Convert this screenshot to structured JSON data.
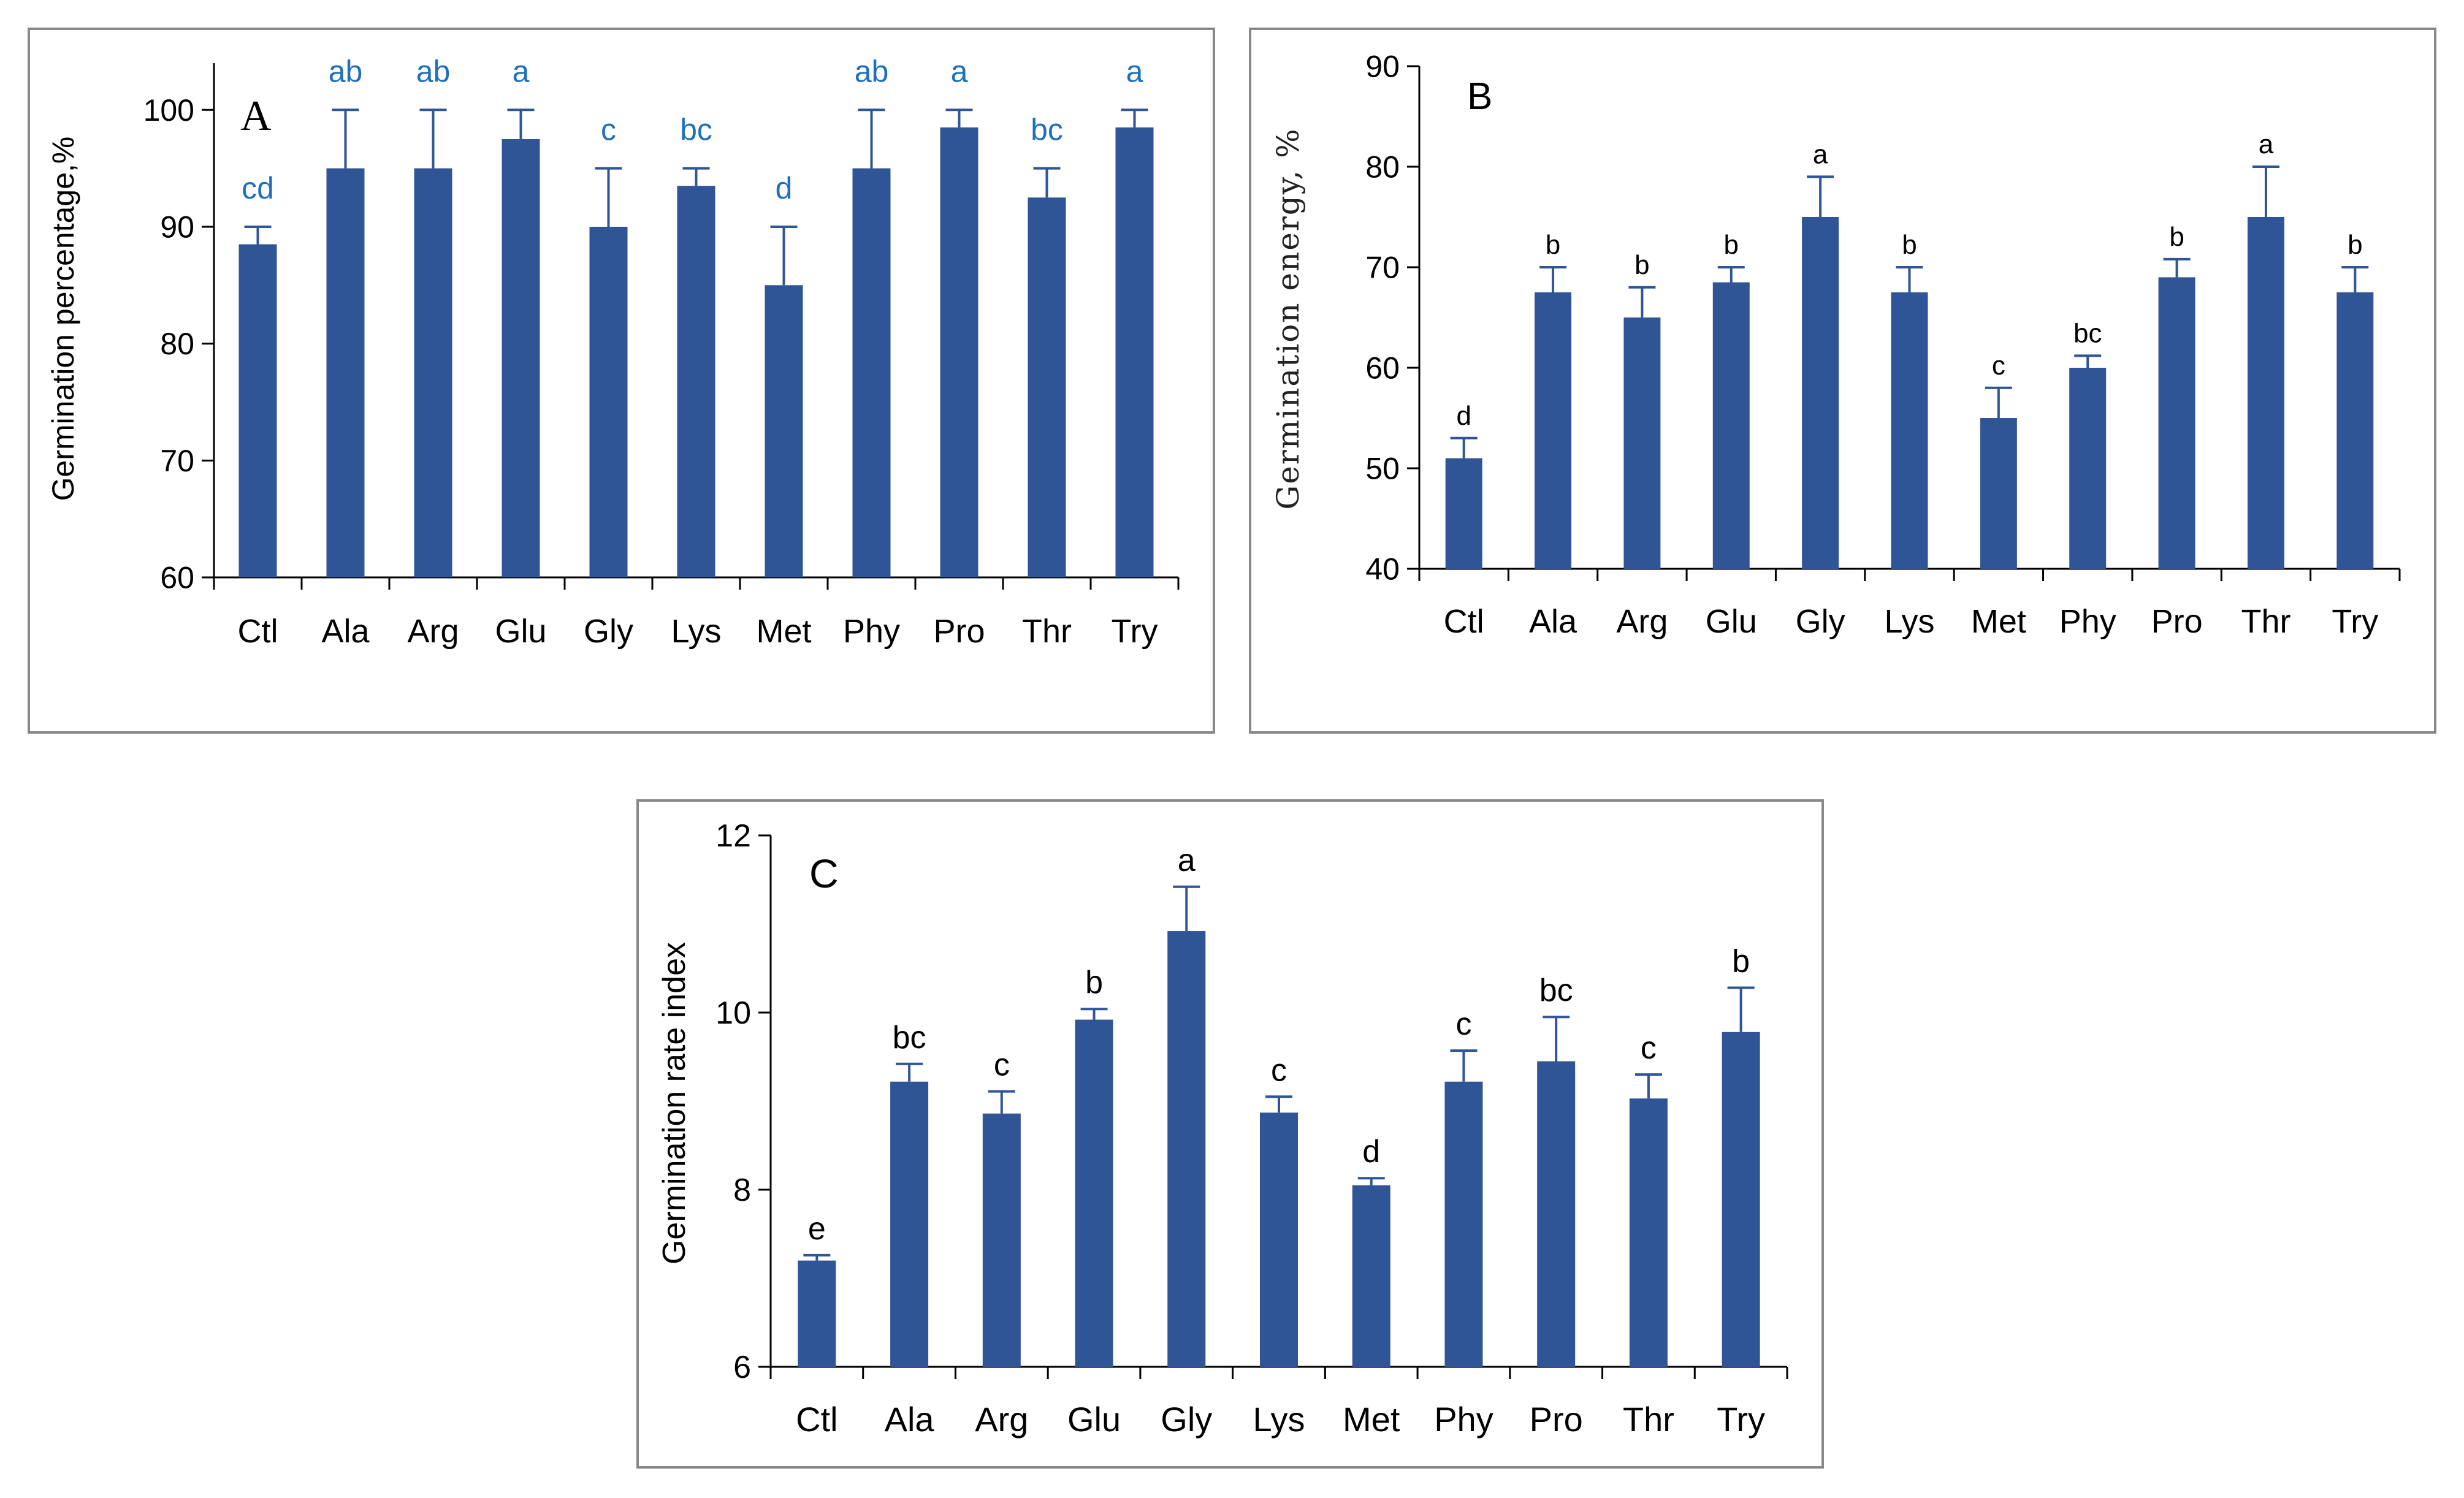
{
  "colors": {
    "bar": "#2F5597",
    "axis": "#000000",
    "frame": "#888888",
    "sig_panel_a": "#1F6FBF",
    "sig_default": "#000000"
  },
  "chart_data": [
    {
      "type": "bar",
      "panel": "A",
      "title": "",
      "xlabel": "",
      "ylabel": "Germination percentage,%",
      "ylim": [
        60,
        104
      ],
      "yticks": [
        60,
        70,
        80,
        90,
        100
      ],
      "yticks_labels": [
        "60",
        "70",
        "80",
        "90",
        "100"
      ],
      "grid": false,
      "categories": [
        "Ctl",
        "Ala",
        "Arg",
        "Glu",
        "Gly",
        "Lys",
        "Met",
        "Phy",
        "Pro",
        "Thr",
        "Try"
      ],
      "values": [
        88.5,
        95,
        95,
        97.5,
        90,
        93.5,
        85,
        95,
        98.5,
        92.5,
        98.5
      ],
      "error": [
        1.5,
        5,
        5,
        2.5,
        5,
        1.5,
        5,
        5,
        1.5,
        2.5,
        1.5
      ],
      "significance": [
        "cd",
        "ab",
        "ab",
        "a",
        "c",
        "bc",
        "d",
        "ab",
        "a",
        "bc",
        "a"
      ]
    },
    {
      "type": "bar",
      "panel": "B",
      "title": "",
      "xlabel": "",
      "ylabel": "Germination energy, %",
      "ylim": [
        40,
        90
      ],
      "yticks": [
        40,
        50,
        60,
        70,
        80,
        90
      ],
      "yticks_labels": [
        "40",
        "50",
        "60",
        "70",
        "80",
        "90"
      ],
      "grid": false,
      "categories": [
        "Ctl",
        "Ala",
        "Arg",
        "Glu",
        "Gly",
        "Lys",
        "Met",
        "Phy",
        "Pro",
        "Thr",
        "Try"
      ],
      "values": [
        51,
        67.5,
        65,
        68.5,
        75,
        67.5,
        55,
        60,
        69,
        75,
        67.5
      ],
      "error": [
        2,
        2.5,
        3,
        1.5,
        4,
        2.5,
        3,
        1.2,
        1.8,
        5,
        2.5
      ],
      "significance": [
        "d",
        "b",
        "b",
        "b",
        "a",
        "b",
        "c",
        "bc",
        "b",
        "a",
        "b"
      ]
    },
    {
      "type": "bar",
      "panel": "C",
      "title": "",
      "xlabel": "",
      "ylabel": "Germination rate index",
      "ylim": [
        6,
        12
      ],
      "yticks": [
        6,
        8,
        10,
        12
      ],
      "yticks_labels": [
        "6",
        "8",
        "10",
        "12"
      ],
      "grid": false,
      "categories": [
        "Ctl",
        "Ala",
        "Arg",
        "Glu",
        "Gly",
        "Lys",
        "Met",
        "Phy",
        "Pro",
        "Thr",
        "Try"
      ],
      "values": [
        7.2,
        9.22,
        8.86,
        9.92,
        10.92,
        8.87,
        8.05,
        9.22,
        9.45,
        9.03,
        9.78
      ],
      "error": [
        0.06,
        0.2,
        0.25,
        0.12,
        0.5,
        0.18,
        0.08,
        0.35,
        0.5,
        0.27,
        0.5
      ],
      "significance": [
        "e",
        "bc",
        "c",
        "b",
        "a",
        "c",
        "d",
        "c",
        "bc",
        "c",
        "b"
      ]
    }
  ]
}
